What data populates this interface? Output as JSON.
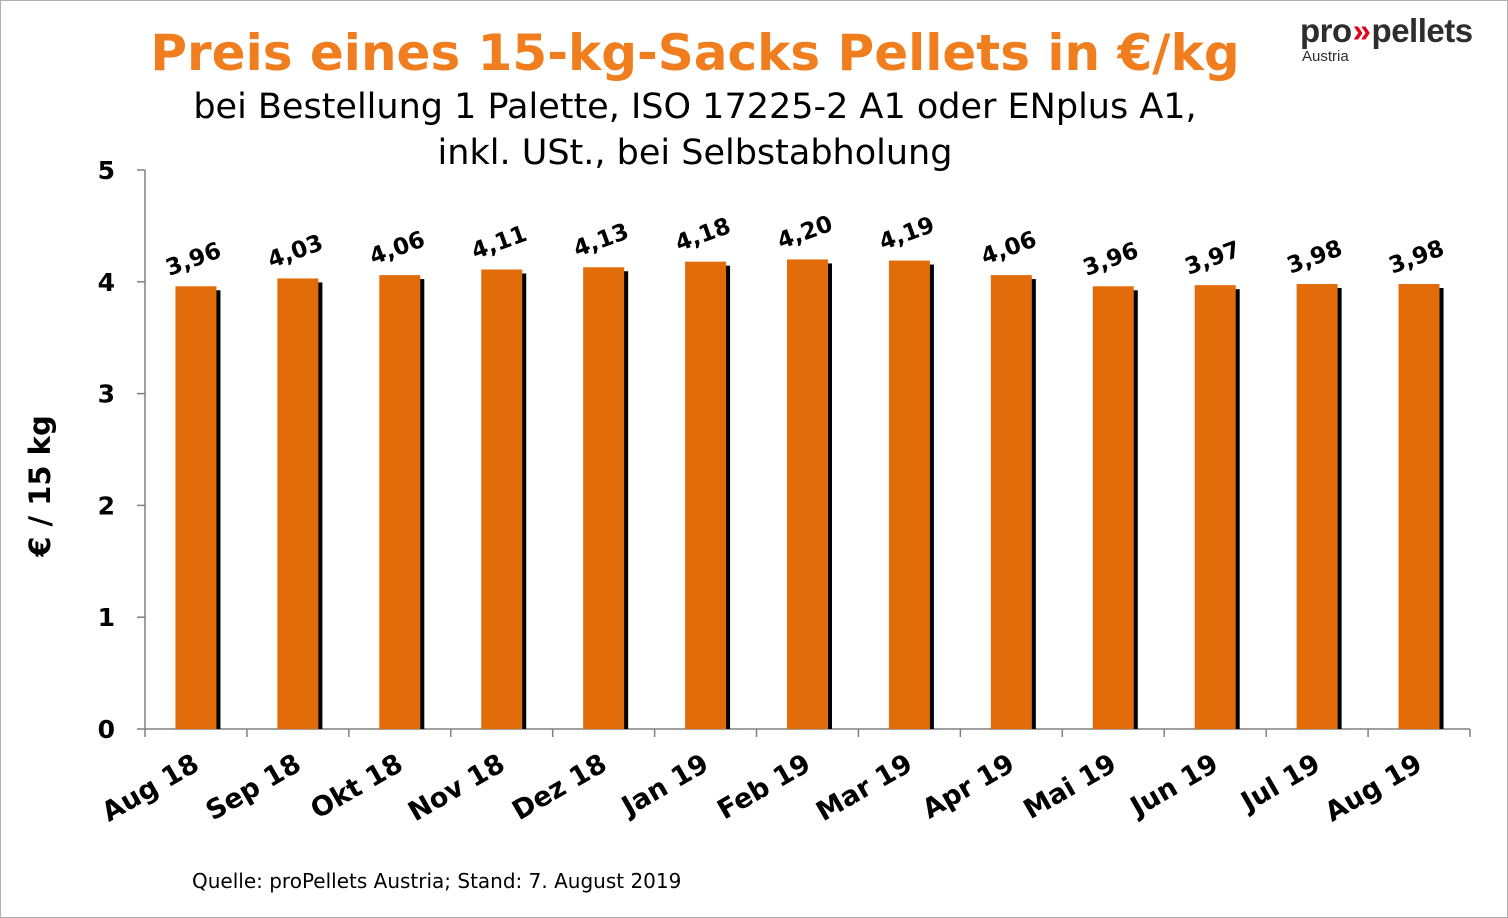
{
  "brand": {
    "logo_pre": "pro",
    "logo_chevrons": "»",
    "logo_post": "pellets",
    "logo_sub": "Austria",
    "accent_color": "#f07d1e",
    "logo_chevron_color": "#e2001a"
  },
  "source_note": "Quelle: proPellets Austria; Stand: 7. August 2019",
  "chart_data": {
    "type": "bar",
    "title": "Preis eines 15-kg-Sacks Pellets in €/kg",
    "subtitle_lines": [
      "bei Bestellung 1 Palette, ISO 17225-2 A1 oder ENplus A1,",
      "inkl. USt., bei Selbstabholung"
    ],
    "xlabel": "",
    "ylabel": "€ / 15 kg",
    "ylim": [
      0,
      5
    ],
    "yticks": [
      "0",
      "1",
      "2",
      "3",
      "4",
      "5"
    ],
    "grid": false,
    "legend": "none",
    "bar_color": "#e36c0a",
    "shadow_color": "#000000",
    "categories": [
      "Aug 18",
      "Sep 18",
      "Okt 18",
      "Nov 18",
      "Dez 18",
      "Jan 19",
      "Feb 19",
      "Mar 19",
      "Apr 19",
      "Mai 19",
      "Jun 19",
      "Jul 19",
      "Aug 19"
    ],
    "values": [
      3.96,
      4.03,
      4.06,
      4.11,
      4.13,
      4.18,
      4.2,
      4.19,
      4.06,
      3.96,
      3.97,
      3.98,
      3.98
    ],
    "data_labels": [
      "3,96",
      "4,03",
      "4,06",
      "4,11",
      "4,13",
      "4,18",
      "4,20",
      "4,19",
      "4,06",
      "3,96",
      "3,97",
      "3,98",
      "3,98"
    ]
  }
}
